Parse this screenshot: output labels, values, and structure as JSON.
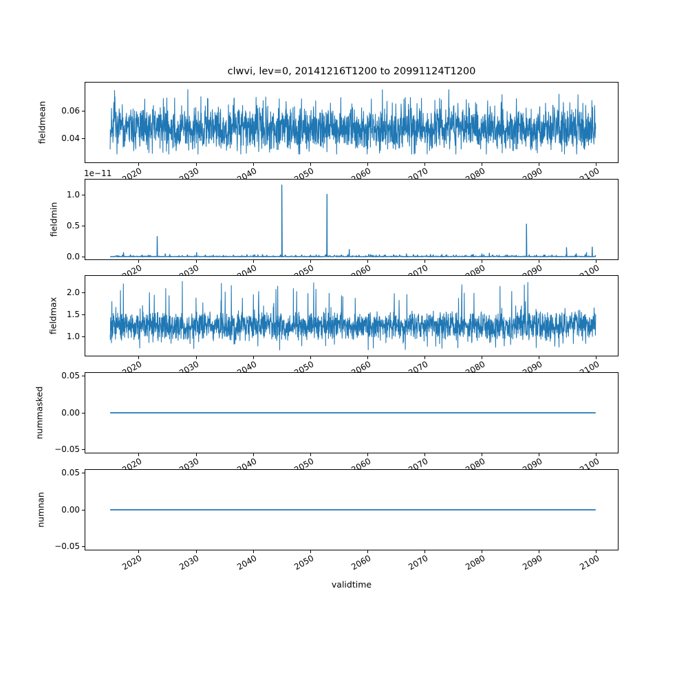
{
  "chart_data": {
    "type": "line",
    "title": "clwvi, lev=0, 20141216T1200 to 20991124T1200",
    "xlabel": "validtime",
    "line_color": "#1f77b4",
    "background": "#ffffff",
    "grid": false,
    "legend": "none",
    "x_axis": {
      "label": "validtime",
      "ticks": [
        2020,
        2030,
        2040,
        2050,
        2060,
        2070,
        2080,
        2090,
        2100
      ],
      "tick_labels": [
        "2020",
        "2030",
        "2040",
        "2050",
        "2060",
        "2070",
        "2080",
        "2090",
        "2100"
      ],
      "tick_rotation_deg": 30,
      "lim": [
        2010.5,
        2103.9
      ],
      "data_start": 2014.96,
      "data_end": 2099.9
    },
    "panels": [
      {
        "ylabel": "fieldmean",
        "yticks": [
          0.04,
          0.06
        ],
        "ytick_labels": [
          "0.04",
          "0.06"
        ],
        "ylim": [
          0.022,
          0.081
        ],
        "series": {
          "kind": "noise",
          "description": "dense high-frequency noise band",
          "mean": 0.0475,
          "core": 0.012,
          "extra": 0.011,
          "peak_min": 0.0285,
          "peak_max": 0.0755,
          "points": 2200,
          "seed": 7
        }
      },
      {
        "ylabel": "fieldmin",
        "offset_text": "1e−11",
        "unit_scale": 1e-11,
        "yticks": [
          0.0,
          0.5,
          1.0
        ],
        "ytick_labels": [
          "0.0",
          "0.5",
          "1.0"
        ],
        "ylim": [
          -0.05,
          1.26
        ],
        "series": {
          "kind": "spikes",
          "description": "near-zero baseline with isolated spikes, values in units of 1e-11",
          "baseline": 0.005,
          "points": 1200,
          "seed": 21,
          "spikes": [
            [
              2017.3,
              0.07
            ],
            [
              2019.0,
              0.02
            ],
            [
              2020.6,
              0.03
            ],
            [
              2021.9,
              0.025
            ],
            [
              2023.2,
              0.33
            ],
            [
              2024.6,
              0.05
            ],
            [
              2025.4,
              0.04
            ],
            [
              2027.0,
              0.02
            ],
            [
              2028.5,
              0.025
            ],
            [
              2030.1,
              0.07
            ],
            [
              2031.6,
              0.03
            ],
            [
              2033.0,
              0.03
            ],
            [
              2034.8,
              0.025
            ],
            [
              2036.5,
              0.03
            ],
            [
              2038.0,
              0.025
            ],
            [
              2040.0,
              0.03
            ],
            [
              2041.6,
              0.04
            ],
            [
              2043.5,
              0.02
            ],
            [
              2045.0,
              1.16
            ],
            [
              2047.5,
              0.02
            ],
            [
              2050.0,
              0.03
            ],
            [
              2051.5,
              0.025
            ],
            [
              2052.9,
              1.01
            ],
            [
              2055.0,
              0.02
            ],
            [
              2056.8,
              0.12
            ],
            [
              2058.5,
              0.03
            ],
            [
              2060.2,
              0.04
            ],
            [
              2061.5,
              0.03
            ],
            [
              2063.0,
              0.03
            ],
            [
              2065.0,
              0.02
            ],
            [
              2066.8,
              0.05
            ],
            [
              2068.0,
              0.03
            ],
            [
              2069.5,
              0.02
            ],
            [
              2071.0,
              0.04
            ],
            [
              2073.0,
              0.04
            ],
            [
              2075.5,
              0.03
            ],
            [
              2077.0,
              0.02
            ],
            [
              2078.5,
              0.04
            ],
            [
              2080.0,
              0.05
            ],
            [
              2081.3,
              0.06
            ],
            [
              2083.0,
              0.03
            ],
            [
              2084.5,
              0.02
            ],
            [
              2086.0,
              0.025
            ],
            [
              2087.8,
              0.53
            ],
            [
              2089.5,
              0.02
            ],
            [
              2091.0,
              0.03
            ],
            [
              2093.0,
              0.025
            ],
            [
              2094.8,
              0.15
            ],
            [
              2096.5,
              0.05
            ],
            [
              2098.3,
              0.07
            ],
            [
              2099.3,
              0.16
            ]
          ]
        }
      },
      {
        "ylabel": "fieldmax",
        "yticks": [
          1.0,
          1.5,
          2.0
        ],
        "ytick_labels": [
          "1.0",
          "1.5",
          "2.0"
        ],
        "ylim": [
          0.56,
          2.39
        ],
        "series": {
          "kind": "noise",
          "description": "dense high-frequency noise band",
          "mean": 1.25,
          "core": 0.25,
          "extra": 0.2,
          "peak_min": 0.7,
          "peak_max": 2.26,
          "points": 2200,
          "seed": 13
        }
      },
      {
        "ylabel": "nummasked",
        "yticks": [
          -0.05,
          0.0,
          0.05
        ],
        "ytick_labels": [
          "−0.05",
          "0.00",
          "0.05"
        ],
        "ylim": [
          -0.055,
          0.055
        ],
        "series": {
          "kind": "flat",
          "value": 0.0
        }
      },
      {
        "ylabel": "numnan",
        "yticks": [
          -0.05,
          0.0,
          0.05
        ],
        "ytick_labels": [
          "−0.05",
          "0.00",
          "0.05"
        ],
        "ylim": [
          -0.055,
          0.055
        ],
        "series": {
          "kind": "flat",
          "value": 0.0
        }
      }
    ]
  }
}
